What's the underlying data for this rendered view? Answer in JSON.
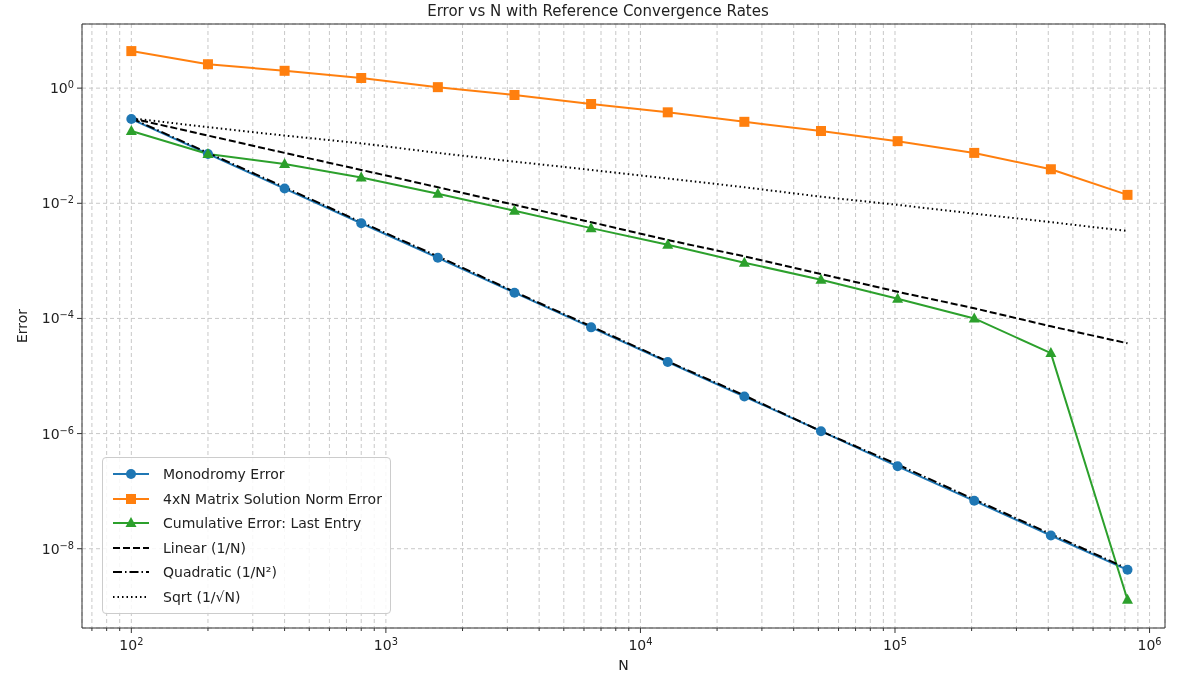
{
  "chart_data": {
    "type": "line",
    "title": "Error vs N with Reference Convergence Rates",
    "xlabel": "N",
    "ylabel": "Error",
    "x": [
      100,
      200,
      400,
      800,
      1600,
      3200,
      6400,
      12800,
      25600,
      51200,
      102400,
      204800,
      409600,
      819200
    ],
    "series": [
      {
        "name": "Monodromy Error",
        "color": "#1f77b4",
        "marker": "circle",
        "line_style": "solid",
        "values": [
          0.29,
          0.072,
          0.018,
          0.0045,
          0.00113,
          0.00028,
          7e-05,
          1.75e-05,
          4.4e-06,
          1.1e-06,
          2.7e-07,
          6.8e-08,
          1.7e-08,
          4.3e-09
        ]
      },
      {
        "name": "4xN Matrix Solution Norm Error",
        "color": "#ff7f0e",
        "marker": "square",
        "line_style": "solid",
        "values": [
          4.4,
          2.6,
          2.0,
          1.5,
          1.04,
          0.76,
          0.53,
          0.38,
          0.26,
          0.18,
          0.12,
          0.075,
          0.039,
          0.014
        ]
      },
      {
        "name": "Cumulative Error: Last Entry",
        "color": "#2ca02c",
        "marker": "triangle",
        "line_style": "solid",
        "values": [
          0.18,
          0.072,
          0.048,
          0.028,
          0.0146,
          0.0074,
          0.0037,
          0.0019,
          0.00093,
          0.00047,
          0.00022,
          0.0001,
          2.5e-05,
          1.3e-09
        ]
      },
      {
        "name": "Linear (1/N)",
        "color": "#000000",
        "marker": "none",
        "line_style": "dashed",
        "values": [
          0.3,
          0.15,
          0.075,
          0.038,
          0.019,
          0.0094,
          0.0047,
          0.0023,
          0.0012,
          0.00059,
          0.00029,
          0.00015,
          7.3e-05,
          3.7e-05
        ]
      },
      {
        "name": "Quadratic (1/N²)",
        "color": "#000000",
        "marker": "none",
        "line_style": "dashdot",
        "values": [
          0.3,
          0.075,
          0.019,
          0.0047,
          0.0012,
          0.00029,
          7.3e-05,
          1.8e-05,
          4.6e-06,
          1.1e-06,
          2.9e-07,
          7.2e-08,
          1.8e-08,
          4.5e-09
        ]
      },
      {
        "name": "Sqrt (1/√N)",
        "color": "#000000",
        "marker": "none",
        "line_style": "dotted",
        "values": [
          0.3,
          0.21,
          0.15,
          0.11,
          0.075,
          0.053,
          0.038,
          0.027,
          0.019,
          0.013,
          0.0094,
          0.0066,
          0.0047,
          0.0033
        ]
      }
    ],
    "log": "xy",
    "grid": true,
    "legend": "bottom left",
    "xlim": [
      64,
      1150000
    ],
    "ylim": [
      4.2e-10,
      13
    ],
    "xticks": [
      {
        "value": 70,
        "label": null
      },
      {
        "value": 80,
        "label": null
      },
      {
        "value": 90,
        "label": null
      },
      {
        "value": 100,
        "label": "10$^{2}$"
      },
      {
        "value": 200,
        "label": null
      },
      {
        "value": 300,
        "label": null
      },
      {
        "value": 400,
        "label": null
      },
      {
        "value": 500,
        "label": null
      },
      {
        "value": 600,
        "label": null
      },
      {
        "value": 700,
        "label": null
      },
      {
        "value": 800,
        "label": null
      },
      {
        "value": 900,
        "label": null
      },
      {
        "value": 1000,
        "label": "10$^{3}$"
      },
      {
        "value": 2000,
        "label": null
      },
      {
        "value": 3000,
        "label": null
      },
      {
        "value": 4000,
        "label": null
      },
      {
        "value": 5000,
        "label": null
      },
      {
        "value": 6000,
        "label": null
      },
      {
        "value": 7000,
        "label": null
      },
      {
        "value": 8000,
        "label": null
      },
      {
        "value": 9000,
        "label": null
      },
      {
        "value": 10000,
        "label": "10$^{4}$"
      },
      {
        "value": 20000,
        "label": null
      },
      {
        "value": 30000,
        "label": null
      },
      {
        "value": 40000,
        "label": null
      },
      {
        "value": 50000,
        "label": null
      },
      {
        "value": 60000,
        "label": null
      },
      {
        "value": 70000,
        "label": null
      },
      {
        "value": 80000,
        "label": null
      },
      {
        "value": 90000,
        "label": null
      },
      {
        "value": 100000,
        "label": "10$^{5}$"
      },
      {
        "value": 200000,
        "label": null
      },
      {
        "value": 300000,
        "label": null
      },
      {
        "value": 400000,
        "label": null
      },
      {
        "value": 500000,
        "label": null
      },
      {
        "value": 600000,
        "label": null
      },
      {
        "value": 700000,
        "label": null
      },
      {
        "value": 800000,
        "label": null
      },
      {
        "value": 900000,
        "label": null
      },
      {
        "value": 1000000,
        "label": "10$^{6}$"
      }
    ],
    "yticks": [
      {
        "value": 1e-08,
        "label": "10$^{−8}$"
      },
      {
        "value": 1e-06,
        "label": "10$^{−6}$"
      },
      {
        "value": 0.0001,
        "label": "10$^{−4}$"
      },
      {
        "value": 0.01,
        "label": "10$^{−2}$"
      },
      {
        "value": 1,
        "label": "10$^{0}$"
      }
    ]
  }
}
